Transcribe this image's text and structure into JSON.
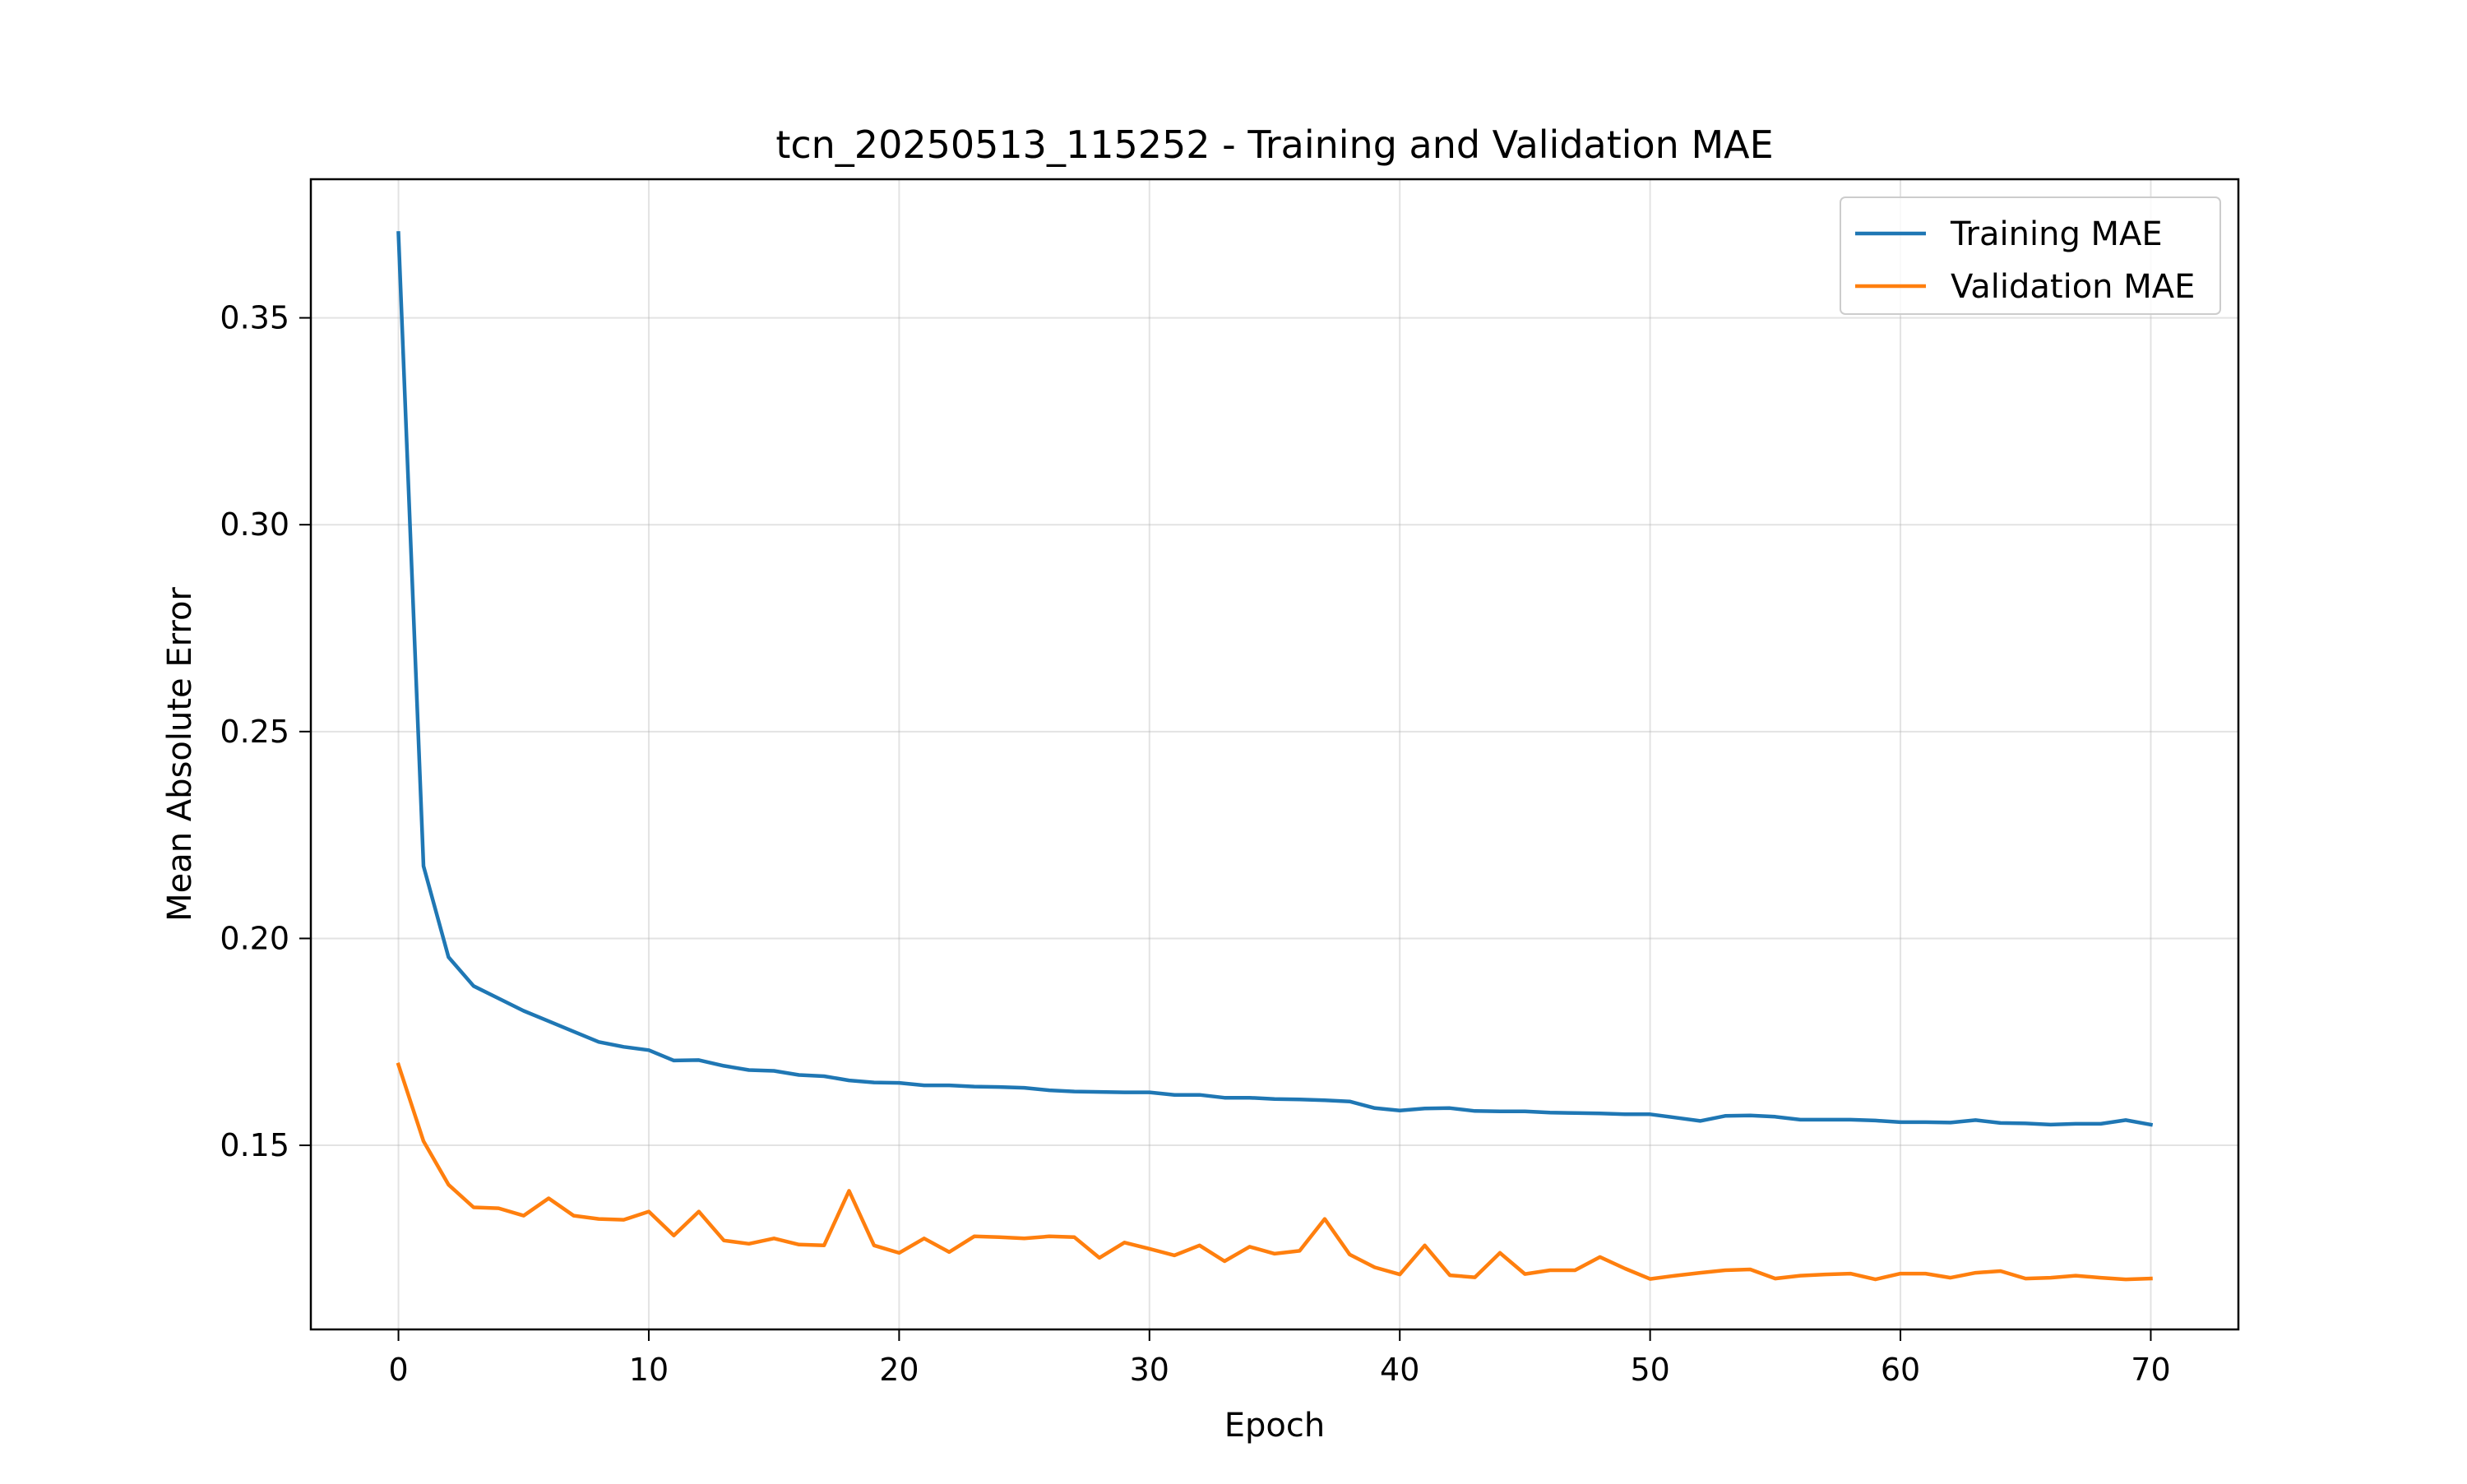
{
  "chart_data": {
    "type": "line",
    "title": "tcn_20250513_115252 - Training and Validation MAE",
    "xlabel": "Epoch",
    "ylabel": "Mean Absolute Error",
    "xlim": [
      -3.5,
      73.5
    ],
    "ylim": [
      0.1055,
      0.3835
    ],
    "xticks": [
      0,
      10,
      20,
      30,
      40,
      50,
      60,
      70
    ],
    "yticks": [
      0.15,
      0.2,
      0.25,
      0.3,
      0.35
    ],
    "ytick_labels": [
      "0.15",
      "0.20",
      "0.25",
      "0.30",
      "0.35"
    ],
    "grid": true,
    "legend_position": "top-right",
    "x": [
      0,
      1,
      2,
      3,
      4,
      5,
      6,
      7,
      8,
      9,
      10,
      11,
      12,
      13,
      14,
      15,
      16,
      17,
      18,
      19,
      20,
      21,
      22,
      23,
      24,
      25,
      26,
      27,
      28,
      29,
      30,
      31,
      32,
      33,
      34,
      35,
      36,
      37,
      38,
      39,
      40,
      41,
      42,
      43,
      44,
      45,
      46,
      47,
      48,
      49,
      50,
      51,
      52,
      53,
      54,
      55,
      56,
      57,
      58,
      59,
      60,
      61,
      62,
      63,
      64,
      65,
      66,
      67,
      68,
      69,
      70
    ],
    "series": [
      {
        "name": "Training MAE",
        "color": "#1f77b4",
        "values": [
          0.3705,
          0.2175,
          0.1955,
          0.1885,
          0.1855,
          0.1825,
          0.18,
          0.1775,
          0.175,
          0.1738,
          0.173,
          0.1705,
          0.1706,
          0.1692,
          0.1682,
          0.168,
          0.167,
          0.1667,
          0.1657,
          0.1652,
          0.1651,
          0.1645,
          0.1645,
          0.1642,
          0.1641,
          0.1639,
          0.1633,
          0.163,
          0.1629,
          0.1628,
          0.1628,
          0.1622,
          0.1622,
          0.1615,
          0.1615,
          0.1612,
          0.1611,
          0.1609,
          0.1606,
          0.159,
          0.1584,
          0.1589,
          0.159,
          0.1583,
          0.1582,
          0.1582,
          0.1579,
          0.1578,
          0.1577,
          0.1575,
          0.1575,
          0.1567,
          0.1559,
          0.1571,
          0.1572,
          0.1569,
          0.1562,
          0.1562,
          0.1562,
          0.156,
          0.1556,
          0.1556,
          0.1555,
          0.1561,
          0.1554,
          0.1553,
          0.155,
          0.1552,
          0.1552,
          0.1561,
          0.155
        ]
      },
      {
        "name": "Validation MAE",
        "color": "#ff7f0e",
        "values": [
          0.1695,
          0.151,
          0.1405,
          0.135,
          0.1348,
          0.133,
          0.1372,
          0.133,
          0.1322,
          0.132,
          0.134,
          0.1282,
          0.134,
          0.127,
          0.1262,
          0.1275,
          0.126,
          0.1258,
          0.139,
          0.1258,
          0.124,
          0.1275,
          0.1242,
          0.128,
          0.1278,
          0.1275,
          0.128,
          0.1278,
          0.1228,
          0.1265,
          0.125,
          0.1234,
          0.1258,
          0.122,
          0.1255,
          0.1238,
          0.1245,
          0.1322,
          0.1236,
          0.1205,
          0.1188,
          0.1258,
          0.1186,
          0.1181,
          0.124,
          0.1189,
          0.1198,
          0.1198,
          0.123,
          0.1202,
          0.1177,
          0.1185,
          0.1192,
          0.1198,
          0.12,
          0.1178,
          0.1185,
          0.1188,
          0.119,
          0.1176,
          0.119,
          0.119,
          0.118,
          0.1192,
          0.1196,
          0.1178,
          0.118,
          0.1185,
          0.118,
          0.1176,
          0.1178
        ]
      }
    ]
  }
}
